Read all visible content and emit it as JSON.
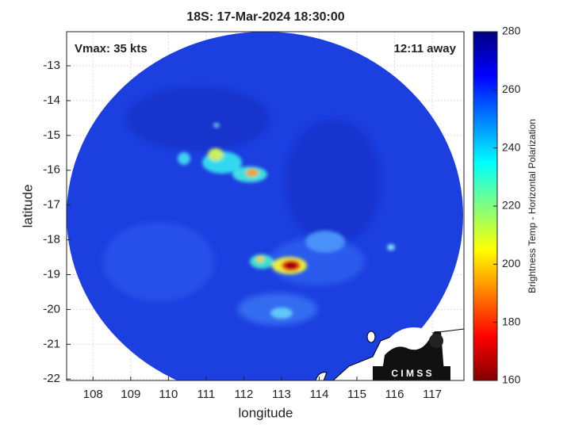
{
  "chart_data": {
    "type": "map",
    "title": "18S: 17-Mar-2024 18:30:00",
    "xlabel": "longitude",
    "ylabel": "latitude",
    "xlim": [
      107.3,
      117.84
    ],
    "ylim": [
      -22.04,
      -12.02
    ],
    "xticks": [
      108,
      109,
      110,
      111,
      112,
      113,
      114,
      115,
      116,
      117
    ],
    "yticks": [
      -13,
      -14,
      -15,
      -16,
      -17,
      -18,
      -19,
      -20,
      -21,
      -22
    ],
    "grid": true,
    "annotations": [
      "Vmax: 35 kts",
      "12:11 away"
    ],
    "logo_text": "C I M S S",
    "colorbar": {
      "label": "Brightness Temp - Horizontal Polarization",
      "lim": [
        160,
        280
      ],
      "ticks": [
        160,
        180,
        200,
        220,
        240,
        260,
        280
      ]
    }
  }
}
